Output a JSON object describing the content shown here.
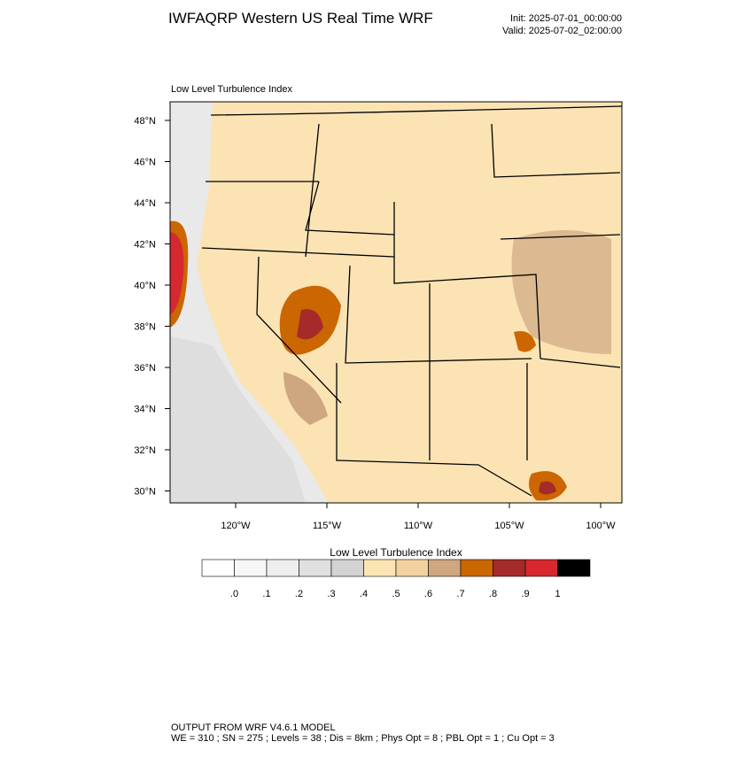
{
  "header": {
    "title": "IWFAQRP Western US Real Time WRF",
    "init": "Init: 2025-07-01_00:00:00",
    "valid": "Valid: 2025-07-02_02:00:00"
  },
  "map": {
    "subtitle": "Low Level Turbulence Index",
    "lat_labels": [
      "48°N",
      "46°N",
      "44°N",
      "42°N",
      "40°N",
      "38°N",
      "36°N",
      "34°N",
      "32°N",
      "30°N"
    ],
    "lon_labels": [
      "120°W",
      "115°W",
      "110°W",
      "105°W",
      "100°W"
    ]
  },
  "colorbar": {
    "title": "Low Level Turbulence Index",
    "colors": [
      "#ffffff",
      "#f7f7f7",
      "#eeeeee",
      "#e0e0e0",
      "#d3d3d3",
      "#fde5b3",
      "#f4d2a0",
      "#cea780",
      "#cc6600",
      "#a52a2a",
      "#d6282e",
      "#000000"
    ],
    "labels": [
      ".0",
      ".1",
      ".2",
      ".3",
      ".4",
      ".5",
      ".6",
      ".7",
      ".8",
      ".9",
      "1"
    ]
  },
  "footer": {
    "line1": "OUTPUT FROM WRF V4.6.1 MODEL",
    "line2": "WE = 310 ; SN = 275 ; Levels = 38 ; Dis = 8km ; Phys Opt = 8 ; PBL Opt = 1 ; Cu Opt = 3"
  }
}
